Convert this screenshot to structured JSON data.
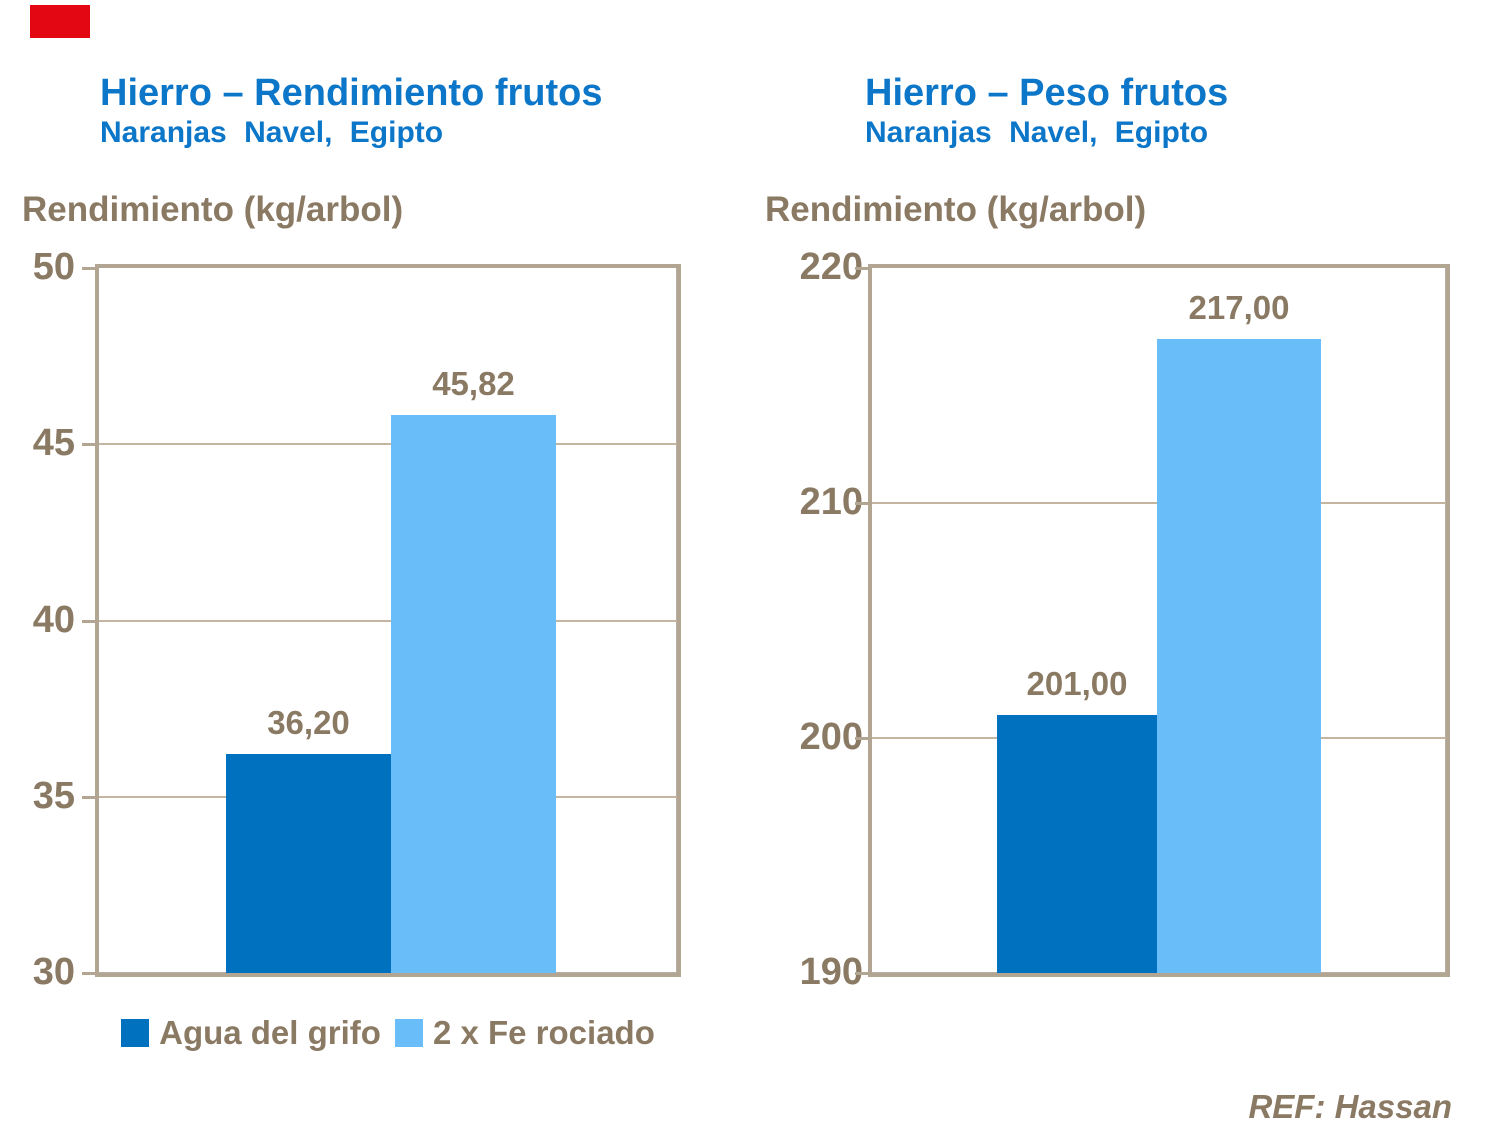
{
  "page": {
    "background": "#ffffff"
  },
  "colors": {
    "title_blue": "#0c76c8",
    "text_brown": "#8a7963",
    "frame_tan": "#b2a591",
    "gridline_tan": "#c3b5a0",
    "bar_dark_blue": "#0071bf",
    "bar_light_blue": "#69bef9",
    "marker_red": "#e30613"
  },
  "legend": {
    "items": [
      {
        "label": "Agua del grifo",
        "color": "#0071bf"
      },
      {
        "label": "2 x Fe rociado",
        "color": "#69bef9"
      }
    ]
  },
  "footer": {
    "ref_label": "REF: Hassan"
  },
  "chart_data": [
    {
      "type": "bar",
      "title": "Hierro – Rendimiento frutos",
      "subtitle": "Naranjas Navel, Egipto",
      "ylabel": "Rendimiento (kg/arbol)",
      "categories": [
        "Agua del grifo",
        "2 x Fe rociado"
      ],
      "values": [
        36.2,
        45.82
      ],
      "value_labels": [
        "36,20",
        "45,82"
      ],
      "ylim": [
        30,
        50
      ],
      "yticks": [
        30,
        35,
        40,
        45,
        50
      ],
      "grid": true,
      "legend_position": "bottom",
      "bar_colors": [
        "#0071bf",
        "#69bef9"
      ]
    },
    {
      "type": "bar",
      "title": "Hierro – Peso frutos",
      "subtitle": "Naranjas Navel, Egipto",
      "ylabel": "Rendimiento (kg/arbol)",
      "categories": [
        "Agua del grifo",
        "2 x Fe rociado"
      ],
      "values": [
        201.0,
        217.0
      ],
      "value_labels": [
        "201,00",
        "217,00"
      ],
      "ylim": [
        190,
        220
      ],
      "yticks": [
        190,
        200,
        210,
        220
      ],
      "grid": true,
      "legend_position": "none",
      "bar_colors": [
        "#0071bf",
        "#69bef9"
      ]
    }
  ]
}
